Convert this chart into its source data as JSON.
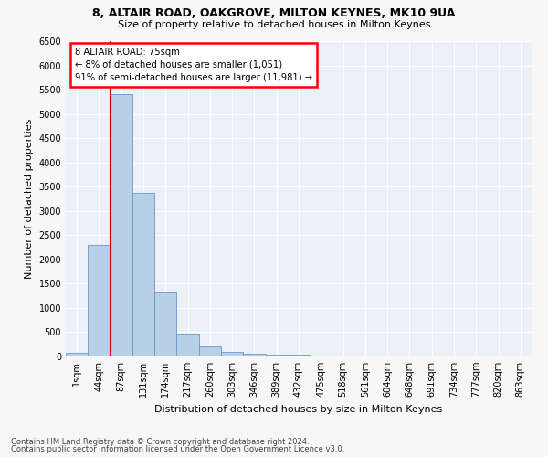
{
  "title1": "8, ALTAIR ROAD, OAKGROVE, MILTON KEYNES, MK10 9UA",
  "title2": "Size of property relative to detached houses in Milton Keynes",
  "xlabel": "Distribution of detached houses by size in Milton Keynes",
  "ylabel": "Number of detached properties",
  "footer1": "Contains HM Land Registry data © Crown copyright and database right 2024.",
  "footer2": "Contains public sector information licensed under the Open Government Licence v3.0.",
  "annotation_title": "8 ALTAIR ROAD: 75sqm",
  "annotation_line1": "← 8% of detached houses are smaller (1,051)",
  "annotation_line2": "91% of semi-detached houses are larger (11,981) →",
  "bar_labels": [
    "1sqm",
    "44sqm",
    "87sqm",
    "131sqm",
    "174sqm",
    "217sqm",
    "260sqm",
    "303sqm",
    "346sqm",
    "389sqm",
    "432sqm",
    "475sqm",
    "518sqm",
    "561sqm",
    "604sqm",
    "648sqm",
    "691sqm",
    "734sqm",
    "777sqm",
    "820sqm",
    "863sqm"
  ],
  "bar_values": [
    70,
    2300,
    5400,
    3380,
    1320,
    480,
    200,
    85,
    55,
    40,
    30,
    20,
    0,
    0,
    0,
    0,
    0,
    0,
    0,
    0,
    0
  ],
  "bar_color": "#b8cfe8",
  "bar_edge_color": "#6699cc",
  "red_line_color": "#cc0000",
  "red_line_x": 1.5,
  "background_color": "#edf1f7",
  "grid_color": "#ffffff",
  "ylim": [
    0,
    6500
  ],
  "yticks": [
    0,
    500,
    1000,
    1500,
    2000,
    2500,
    3000,
    3500,
    4000,
    4500,
    5000,
    5500,
    6000,
    6500
  ],
  "fig_bg": "#f7f7f7",
  "title1_fontsize": 9,
  "title2_fontsize": 8,
  "ylabel_fontsize": 8,
  "xlabel_fontsize": 8,
  "tick_fontsize": 7,
  "footer_fontsize": 6
}
